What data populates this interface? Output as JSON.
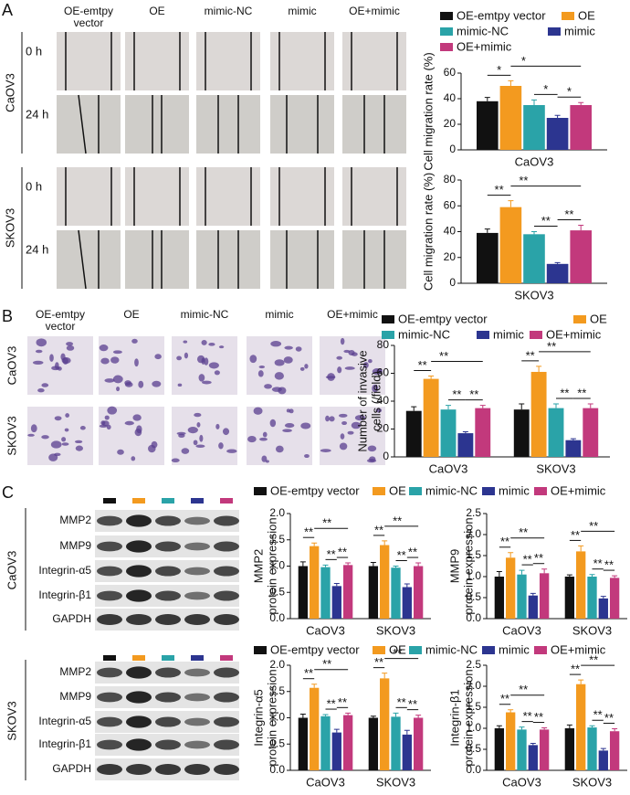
{
  "panels": [
    "A",
    "B",
    "C"
  ],
  "migration": {
    "columns": [
      "OE-emtpy vector",
      "OE",
      "mimic-NC",
      "mimic",
      "OE+mimic"
    ],
    "cell_lines": [
      "CaOV3",
      "SKOV3"
    ],
    "times": [
      "0 h",
      "24 h"
    ]
  },
  "invasion": {
    "columns": [
      "OE-emtpy vector",
      "OE",
      "mimic-NC",
      "mimic",
      "OE+mimic"
    ],
    "cell_lines": [
      "CaOV3",
      "SKOV3"
    ]
  },
  "western": {
    "proteins": [
      "MMP2",
      "MMP9",
      "Integrin-α5",
      "Integrin-β1",
      "GAPDH"
    ],
    "cell_lines": [
      "CaOV3",
      "SKOV3"
    ]
  },
  "chart_data": [
    {
      "type": "bar",
      "ylabel": [
        "Cell migration rate (%)"
      ],
      "categories": [
        "CaOV3"
      ],
      "ylim": [
        0,
        60
      ],
      "yticks": [
        0,
        20,
        40,
        60
      ],
      "legend": true,
      "series": [
        {
          "name": "OE-emtpy vector",
          "color": "#111111",
          "values": [
            38
          ],
          "errors": [
            3
          ]
        },
        {
          "name": "OE",
          "color": "#f39a1f",
          "values": [
            50
          ],
          "errors": [
            4
          ]
        },
        {
          "name": "mimic-NC",
          "color": "#2aa3a8",
          "values": [
            35
          ],
          "errors": [
            4
          ]
        },
        {
          "name": "mimic",
          "color": "#2c3590",
          "values": [
            25
          ],
          "errors": [
            2
          ]
        },
        {
          "name": "OE+mimic",
          "color": "#c2397c",
          "values": [
            35
          ],
          "errors": [
            2
          ]
        }
      ],
      "annotations": [
        {
          "text": "*",
          "category": "CaOV3",
          "pair": [
            "OE-emtpy vector",
            "OE"
          ]
        },
        {
          "text": "*",
          "category": "CaOV3",
          "pair": [
            "OE",
            "OE+mimic"
          ]
        },
        {
          "text": "*",
          "category": "CaOV3",
          "pair": [
            "mimic-NC",
            "mimic"
          ]
        },
        {
          "text": "*",
          "category": "CaOV3",
          "pair": [
            "mimic",
            "OE+mimic"
          ]
        }
      ]
    },
    {
      "type": "bar",
      "ylabel": [
        "Cell migration rate (%)"
      ],
      "categories": [
        "SKOV3"
      ],
      "ylim": [
        0,
        80
      ],
      "yticks": [
        0,
        20,
        40,
        60,
        80
      ],
      "legend": false,
      "series": [
        {
          "name": "OE-emtpy vector",
          "color": "#111111",
          "values": [
            39
          ],
          "errors": [
            3
          ]
        },
        {
          "name": "OE",
          "color": "#f39a1f",
          "values": [
            59
          ],
          "errors": [
            5
          ]
        },
        {
          "name": "mimic-NC",
          "color": "#2aa3a8",
          "values": [
            38
          ],
          "errors": [
            2
          ]
        },
        {
          "name": "mimic",
          "color": "#2c3590",
          "values": [
            15
          ],
          "errors": [
            1
          ]
        },
        {
          "name": "OE+mimic",
          "color": "#c2397c",
          "values": [
            41
          ],
          "errors": [
            4
          ]
        }
      ],
      "annotations": [
        {
          "text": "**",
          "category": "SKOV3",
          "pair": [
            "OE-emtpy vector",
            "OE"
          ]
        },
        {
          "text": "**",
          "category": "SKOV3",
          "pair": [
            "OE",
            "OE+mimic"
          ]
        },
        {
          "text": "**",
          "category": "SKOV3",
          "pair": [
            "mimic-NC",
            "mimic"
          ]
        },
        {
          "text": "**",
          "category": "SKOV3",
          "pair": [
            "mimic",
            "OE+mimic"
          ]
        }
      ]
    },
    {
      "type": "bar",
      "ylabel": [
        "Number of invasive",
        "cells (/field)"
      ],
      "categories": [
        "CaOV3",
        "SKOV3"
      ],
      "ylim": [
        0,
        80
      ],
      "yticks": [
        0,
        20,
        40,
        60,
        80
      ],
      "legend": true,
      "series": [
        {
          "name": "OE-emtpy vector",
          "color": "#111111",
          "values": [
            33,
            34
          ],
          "errors": [
            3,
            4
          ]
        },
        {
          "name": "OE",
          "color": "#f39a1f",
          "values": [
            56,
            61
          ],
          "errors": [
            2,
            4
          ]
        },
        {
          "name": "mimic-NC",
          "color": "#2aa3a8",
          "values": [
            34,
            35
          ],
          "errors": [
            3,
            3
          ]
        },
        {
          "name": "mimic",
          "color": "#2c3590",
          "values": [
            17,
            12
          ],
          "errors": [
            1,
            1
          ]
        },
        {
          "name": "OE+mimic",
          "color": "#c2397c",
          "values": [
            35,
            35
          ],
          "errors": [
            2,
            3
          ]
        }
      ],
      "annotations": [
        {
          "text": "**",
          "category": "CaOV3",
          "pair": [
            "OE-emtpy vector",
            "OE"
          ]
        },
        {
          "text": "**",
          "category": "CaOV3",
          "pair": [
            "OE",
            "OE+mimic"
          ]
        },
        {
          "text": "**",
          "category": "CaOV3",
          "pair": [
            "mimic-NC",
            "mimic"
          ]
        },
        {
          "text": "**",
          "category": "CaOV3",
          "pair": [
            "mimic",
            "OE+mimic"
          ]
        },
        {
          "text": "**",
          "category": "SKOV3",
          "pair": [
            "OE-emtpy vector",
            "OE"
          ]
        },
        {
          "text": "**",
          "category": "SKOV3",
          "pair": [
            "OE",
            "OE+mimic"
          ]
        },
        {
          "text": "**",
          "category": "SKOV3",
          "pair": [
            "mimic-NC",
            "mimic"
          ]
        },
        {
          "text": "**",
          "category": "SKOV3",
          "pair": [
            "mimic",
            "OE+mimic"
          ]
        }
      ]
    },
    {
      "type": "bar",
      "ylabel": [
        "MMP2",
        "protein expression"
      ],
      "categories": [
        "CaOV3",
        "SKOV3"
      ],
      "ylim": [
        0,
        2
      ],
      "yticks": [
        {
          "value": 0,
          "label": "0.0"
        },
        {
          "value": 0.5,
          "label": "0.5"
        },
        {
          "value": 1,
          "label": "1.0"
        },
        {
          "value": 1.5,
          "label": "1.5"
        },
        {
          "value": 2,
          "label": "2.0"
        }
      ],
      "legend": true,
      "series": [
        {
          "name": "OE-emtpy vector",
          "color": "#111111",
          "values": [
            1.0,
            1.0
          ],
          "errors": [
            0.08,
            0.07
          ]
        },
        {
          "name": "OE",
          "color": "#f39a1f",
          "values": [
            1.38,
            1.4
          ],
          "errors": [
            0.06,
            0.08
          ]
        },
        {
          "name": "mimic-NC",
          "color": "#2aa3a8",
          "values": [
            0.98,
            0.97
          ],
          "errors": [
            0.04,
            0.03
          ]
        },
        {
          "name": "mimic",
          "color": "#2c3590",
          "values": [
            0.62,
            0.6
          ],
          "errors": [
            0.05,
            0.06
          ]
        },
        {
          "name": "OE+mimic",
          "color": "#c2397c",
          "values": [
            1.02,
            1.0
          ],
          "errors": [
            0.04,
            0.06
          ]
        }
      ],
      "annotations": [
        {
          "text": "**",
          "category": "CaOV3",
          "pair": [
            "OE-emtpy vector",
            "OE"
          ]
        },
        {
          "text": "**",
          "category": "CaOV3",
          "pair": [
            "OE",
            "OE+mimic"
          ]
        },
        {
          "text": "**",
          "category": "CaOV3",
          "pair": [
            "mimic-NC",
            "mimic"
          ]
        },
        {
          "text": "**",
          "category": "CaOV3",
          "pair": [
            "mimic",
            "OE+mimic"
          ]
        },
        {
          "text": "**",
          "category": "SKOV3",
          "pair": [
            "OE-emtpy vector",
            "OE"
          ]
        },
        {
          "text": "**",
          "category": "SKOV3",
          "pair": [
            "OE",
            "OE+mimic"
          ]
        },
        {
          "text": "**",
          "category": "SKOV3",
          "pair": [
            "mimic-NC",
            "mimic"
          ]
        },
        {
          "text": "**",
          "category": "SKOV3",
          "pair": [
            "mimic",
            "OE+mimic"
          ]
        }
      ]
    },
    {
      "type": "bar",
      "ylabel": [
        "MMP9",
        "protein expression"
      ],
      "categories": [
        "CaOV3",
        "SKOV3"
      ],
      "ylim": [
        0,
        2.5
      ],
      "yticks": [
        {
          "value": 0,
          "label": "0.0"
        },
        {
          "value": 0.5,
          "label": "0.5"
        },
        {
          "value": 1,
          "label": "1.0"
        },
        {
          "value": 1.5,
          "label": "1.5"
        },
        {
          "value": 2,
          "label": "2.0"
        },
        {
          "value": 2.5,
          "label": "2.5"
        }
      ],
      "legend": false,
      "series": [
        {
          "name": "OE-emtpy vector",
          "color": "#111111",
          "values": [
            1.0,
            1.0
          ],
          "errors": [
            0.12,
            0.04
          ]
        },
        {
          "name": "OE",
          "color": "#f39a1f",
          "values": [
            1.45,
            1.6
          ],
          "errors": [
            0.12,
            0.13
          ]
        },
        {
          "name": "mimic-NC",
          "color": "#2aa3a8",
          "values": [
            1.05,
            1.0
          ],
          "errors": [
            0.1,
            0.05
          ]
        },
        {
          "name": "mimic",
          "color": "#2c3590",
          "values": [
            0.55,
            0.48
          ],
          "errors": [
            0.05,
            0.05
          ]
        },
        {
          "name": "OE+mimic",
          "color": "#c2397c",
          "values": [
            1.08,
            0.97
          ],
          "errors": [
            0.1,
            0.05
          ]
        }
      ],
      "annotations": [
        {
          "text": "**",
          "category": "CaOV3",
          "pair": [
            "OE-emtpy vector",
            "OE"
          ]
        },
        {
          "text": "**",
          "category": "CaOV3",
          "pair": [
            "OE",
            "OE+mimic"
          ]
        },
        {
          "text": "**",
          "category": "CaOV3",
          "pair": [
            "mimic-NC",
            "mimic"
          ]
        },
        {
          "text": "**",
          "category": "CaOV3",
          "pair": [
            "mimic",
            "OE+mimic"
          ]
        },
        {
          "text": "**",
          "category": "SKOV3",
          "pair": [
            "OE-emtpy vector",
            "OE"
          ]
        },
        {
          "text": "**",
          "category": "SKOV3",
          "pair": [
            "OE",
            "OE+mimic"
          ]
        },
        {
          "text": "**",
          "category": "SKOV3",
          "pair": [
            "mimic-NC",
            "mimic"
          ]
        },
        {
          "text": "**",
          "category": "SKOV3",
          "pair": [
            "mimic",
            "OE+mimic"
          ]
        }
      ]
    },
    {
      "type": "bar",
      "ylabel": [
        "Integrin-α5",
        "protein expression"
      ],
      "categories": [
        "CaOV3",
        "SKOV3"
      ],
      "ylim": [
        0,
        2
      ],
      "yticks": [
        {
          "value": 0,
          "label": "0.0"
        },
        {
          "value": 0.5,
          "label": "0.5"
        },
        {
          "value": 1,
          "label": "1.0"
        },
        {
          "value": 1.5,
          "label": "1.5"
        },
        {
          "value": 2,
          "label": "2.0"
        }
      ],
      "legend": true,
      "series": [
        {
          "name": "OE-emtpy vector",
          "color": "#111111",
          "values": [
            1.0,
            1.0
          ],
          "errors": [
            0.07,
            0.03
          ]
        },
        {
          "name": "OE",
          "color": "#f39a1f",
          "values": [
            1.57,
            1.75
          ],
          "errors": [
            0.07,
            0.1
          ]
        },
        {
          "name": "mimic-NC",
          "color": "#2aa3a8",
          "values": [
            1.03,
            1.02
          ],
          "errors": [
            0.03,
            0.07
          ]
        },
        {
          "name": "mimic",
          "color": "#2c3590",
          "values": [
            0.72,
            0.68
          ],
          "errors": [
            0.06,
            0.08
          ]
        },
        {
          "name": "OE+mimic",
          "color": "#c2397c",
          "values": [
            1.05,
            1.0
          ],
          "errors": [
            0.04,
            0.05
          ]
        }
      ],
      "annotations": [
        {
          "text": "**",
          "category": "CaOV3",
          "pair": [
            "OE-emtpy vector",
            "OE"
          ]
        },
        {
          "text": "**",
          "category": "CaOV3",
          "pair": [
            "OE",
            "OE+mimic"
          ]
        },
        {
          "text": "**",
          "category": "CaOV3",
          "pair": [
            "mimic-NC",
            "mimic"
          ]
        },
        {
          "text": "**",
          "category": "CaOV3",
          "pair": [
            "mimic",
            "OE+mimic"
          ]
        },
        {
          "text": "**",
          "category": "SKOV3",
          "pair": [
            "OE-emtpy vector",
            "OE"
          ]
        },
        {
          "text": "**",
          "category": "SKOV3",
          "pair": [
            "OE",
            "OE+mimic"
          ]
        },
        {
          "text": "**",
          "category": "SKOV3",
          "pair": [
            "mimic-NC",
            "mimic"
          ]
        },
        {
          "text": "**",
          "category": "SKOV3",
          "pair": [
            "mimic",
            "OE+mimic"
          ]
        }
      ]
    },
    {
      "type": "bar",
      "ylabel": [
        "Integrin-β1",
        "protein expression"
      ],
      "categories": [
        "CaOV3",
        "SKOV3"
      ],
      "ylim": [
        0,
        2.5
      ],
      "yticks": [
        {
          "value": 0,
          "label": "0.0"
        },
        {
          "value": 0.5,
          "label": "0.5"
        },
        {
          "value": 1,
          "label": "1.0"
        },
        {
          "value": 1.5,
          "label": "1.5"
        },
        {
          "value": 2,
          "label": "2.0"
        },
        {
          "value": 2.5,
          "label": "2.5"
        }
      ],
      "legend": false,
      "series": [
        {
          "name": "OE-emtpy vector",
          "color": "#111111",
          "values": [
            1.0,
            1.0
          ],
          "errors": [
            0.06,
            0.08
          ]
        },
        {
          "name": "OE",
          "color": "#f39a1f",
          "values": [
            1.38,
            2.05
          ],
          "errors": [
            0.06,
            0.1
          ]
        },
        {
          "name": "mimic-NC",
          "color": "#2aa3a8",
          "values": [
            0.97,
            1.02
          ],
          "errors": [
            0.06,
            0.04
          ]
        },
        {
          "name": "mimic",
          "color": "#2c3590",
          "values": [
            0.6,
            0.47
          ],
          "errors": [
            0.04,
            0.05
          ]
        },
        {
          "name": "OE+mimic",
          "color": "#c2397c",
          "values": [
            0.97,
            0.93
          ],
          "errors": [
            0.04,
            0.06
          ]
        }
      ],
      "annotations": [
        {
          "text": "**",
          "category": "CaOV3",
          "pair": [
            "OE-emtpy vector",
            "OE"
          ]
        },
        {
          "text": "**",
          "category": "CaOV3",
          "pair": [
            "OE",
            "OE+mimic"
          ]
        },
        {
          "text": "**",
          "category": "CaOV3",
          "pair": [
            "mimic-NC",
            "mimic"
          ]
        },
        {
          "text": "**",
          "category": "CaOV3",
          "pair": [
            "mimic",
            "OE+mimic"
          ]
        },
        {
          "text": "**",
          "category": "SKOV3",
          "pair": [
            "OE-emtpy vector",
            "OE"
          ]
        },
        {
          "text": "**",
          "category": "SKOV3",
          "pair": [
            "OE",
            "OE+mimic"
          ]
        },
        {
          "text": "**",
          "category": "SKOV3",
          "pair": [
            "mimic-NC",
            "mimic"
          ]
        },
        {
          "text": "**",
          "category": "SKOV3",
          "pair": [
            "mimic",
            "OE+mimic"
          ]
        }
      ]
    }
  ]
}
